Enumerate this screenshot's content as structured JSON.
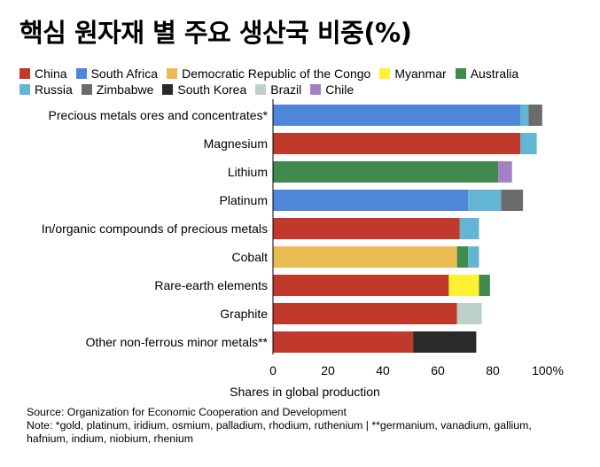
{
  "title": "핵심 원자재 별 주요 생산국 비중(%)",
  "legend_rows": [
    [
      {
        "name": "China",
        "color": "#c0392b"
      },
      {
        "name": "South Africa",
        "color": "#4e86d8"
      },
      {
        "name": "Democratic Republic of the Congo",
        "color": "#eabb52"
      },
      {
        "name": "Myanmar",
        "color": "#fff233"
      },
      {
        "name": "Australia",
        "color": "#3f8a4c"
      }
    ],
    [
      {
        "name": "Russia",
        "color": "#62b5d3"
      },
      {
        "name": "Zimbabwe",
        "color": "#6b6b6b"
      },
      {
        "name": "South Korea",
        "color": "#2a2a2a"
      },
      {
        "name": "Brazil",
        "color": "#bdd1c9"
      },
      {
        "name": "Chile",
        "color": "#a57fc3"
      }
    ]
  ],
  "chart_data": {
    "type": "bar",
    "orientation": "horizontal",
    "stacked": true,
    "xlabel": "Shares in global production",
    "xlim": [
      0,
      100
    ],
    "xticks": [
      "0",
      "20",
      "40",
      "60",
      "80",
      "100%"
    ],
    "categories": [
      {
        "label": "Precious metals ores and concentrates*",
        "segments": [
          {
            "series": "South Africa",
            "value": 90
          },
          {
            "series": "Russia",
            "value": 3
          },
          {
            "series": "Zimbabwe",
            "value": 5
          }
        ]
      },
      {
        "label": "Magnesium",
        "segments": [
          {
            "series": "China",
            "value": 90
          },
          {
            "series": "Russia",
            "value": 6
          }
        ]
      },
      {
        "label": "Lithium",
        "segments": [
          {
            "series": "Australia",
            "value": 82
          },
          {
            "series": "Chile",
            "value": 5
          }
        ]
      },
      {
        "label": "Platinum",
        "segments": [
          {
            "series": "South Africa",
            "value": 71
          },
          {
            "series": "Russia",
            "value": 12
          },
          {
            "series": "Zimbabwe",
            "value": 8
          }
        ]
      },
      {
        "label": "In/organic compounds of precious metals",
        "segments": [
          {
            "series": "China",
            "value": 68
          },
          {
            "series": "Russia",
            "value": 7
          }
        ]
      },
      {
        "label": "Cobalt",
        "segments": [
          {
            "series": "Democratic Republic of the Congo",
            "value": 67
          },
          {
            "series": "Australia",
            "value": 4
          },
          {
            "series": "Russia",
            "value": 4
          }
        ]
      },
      {
        "label": "Rare-earth elements",
        "segments": [
          {
            "series": "China",
            "value": 64
          },
          {
            "series": "Myanmar",
            "value": 11
          },
          {
            "series": "Australia",
            "value": 4
          }
        ]
      },
      {
        "label": "Graphite",
        "segments": [
          {
            "series": "China",
            "value": 67
          },
          {
            "series": "Brazil",
            "value": 9
          }
        ]
      },
      {
        "label": "Other non-ferrous minor metals**",
        "segments": [
          {
            "series": "China",
            "value": 51
          },
          {
            "series": "South Korea",
            "value": 23
          }
        ]
      }
    ]
  },
  "footer": {
    "source": "Source: Organization for Economic Cooperation and Development",
    "note_line1": "Note: *gold, platinum, iridium, osmium, palladium, rhodium, ruthenium | **germanium, vanadium, gallium,",
    "note_line2": "hafnium, indium, niobium, rhenium"
  }
}
